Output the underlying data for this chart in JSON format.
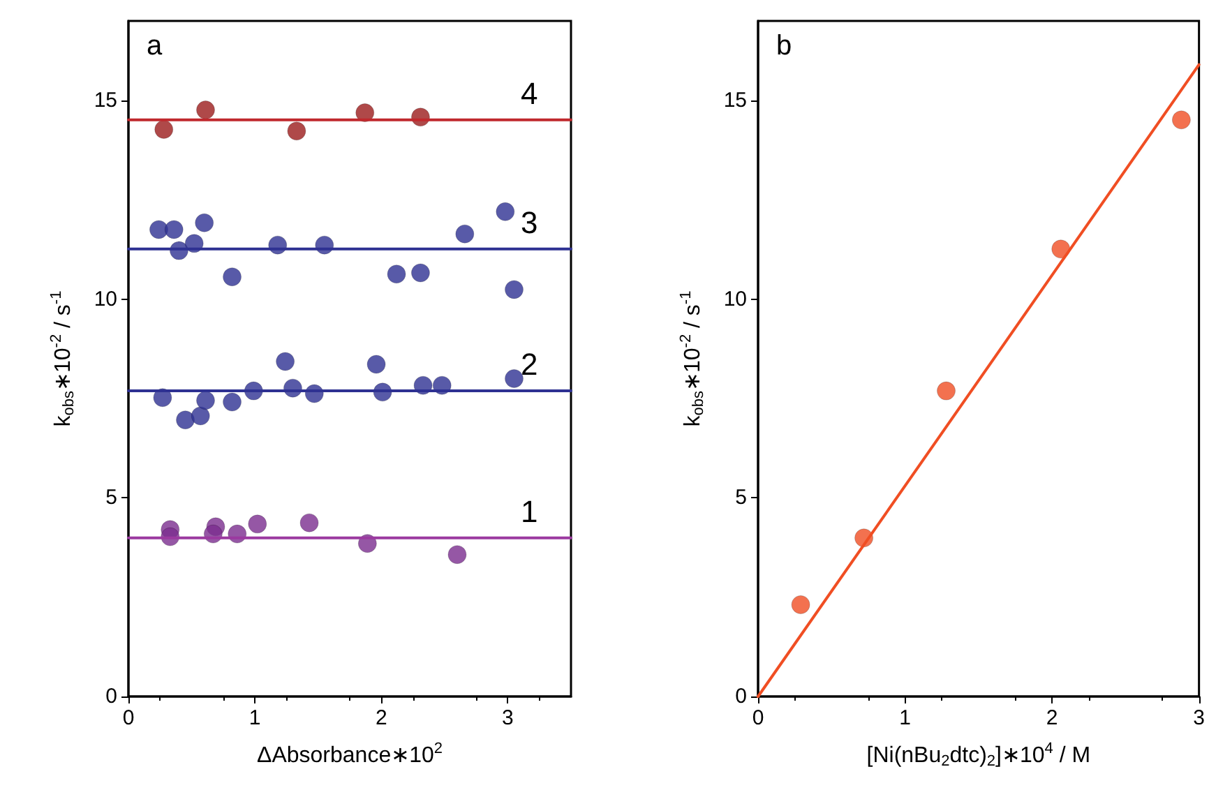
{
  "chart_data": [
    {
      "type": "scatter",
      "title": "a",
      "xlabel": "ΔAbsorbance∗10$^{2}$",
      "ylabel": "k$_{obs}$∗10$^{-2}$ / s$^{-1}$",
      "xlim": [
        0,
        3.5
      ],
      "ylim": [
        0,
        17
      ],
      "xticks": [
        0,
        1,
        2,
        3
      ],
      "yticks": [
        0,
        5,
        10,
        15
      ],
      "grid": false,
      "series": [
        {
          "color": "#9b1c1c",
          "marker": "circle",
          "x": [
            0.28,
            0.61,
            1.33,
            1.87,
            2.31
          ],
          "values": [
            14.27,
            14.76,
            14.23,
            14.69,
            14.58
          ]
        },
        {
          "color": "#2e3192",
          "marker": "circle",
          "x": [
            0.24,
            0.36,
            0.4,
            0.52,
            0.6,
            0.82,
            1.18,
            1.55,
            2.12,
            2.31,
            2.66,
            2.98,
            3.05
          ],
          "values": [
            11.75,
            11.75,
            11.22,
            11.4,
            11.92,
            10.56,
            11.36,
            11.36,
            10.63,
            10.66,
            11.64,
            12.2,
            10.24
          ]
        },
        {
          "color": "#2e3192",
          "marker": "circle",
          "x": [
            0.27,
            0.45,
            0.57,
            0.61,
            0.82,
            0.99,
            1.24,
            1.3,
            1.47,
            1.96,
            2.01,
            2.33,
            2.48,
            3.05
          ],
          "values": [
            7.52,
            6.96,
            7.06,
            7.45,
            7.41,
            7.69,
            8.43,
            7.76,
            7.62,
            8.36,
            7.66,
            7.83,
            7.83,
            8.0
          ]
        },
        {
          "color": "#7b2d8e",
          "marker": "circle",
          "x": [
            0.33,
            0.33,
            0.69,
            0.67,
            0.86,
            1.02,
            1.43,
            1.89,
            2.6
          ],
          "values": [
            4.2,
            4.02,
            4.27,
            4.09,
            4.09,
            4.34,
            4.37,
            3.85,
            3.57
          ]
        },
        {
          "type": "line",
          "name": "4",
          "color": "#c0282d",
          "marker": "none",
          "line_style": "solid",
          "x": [
            0,
            3.5
          ],
          "values": [
            14.51,
            14.51
          ]
        },
        {
          "type": "line",
          "name": "3",
          "color": "#2e3192",
          "marker": "none",
          "line_style": "solid",
          "x": [
            0,
            3.5
          ],
          "values": [
            11.26,
            11.26
          ]
        },
        {
          "type": "line",
          "name": "2",
          "color": "#2e3192",
          "marker": "none",
          "line_style": "solid",
          "x": [
            0,
            3.5
          ],
          "values": [
            7.69,
            7.69
          ]
        },
        {
          "type": "line",
          "name": "1",
          "color": "#9b3aa0",
          "marker": "none",
          "line_style": "solid",
          "x": [
            0,
            3.5
          ],
          "values": [
            3.99,
            3.99
          ]
        }
      ]
    },
    {
      "type": "scatter",
      "title": "b",
      "xlabel": "[Ni(nBu$_{2}$dtc)$_{2}$]∗10$^{4}$ / M",
      "ylabel": "k$_{obs}$∗10$^{-2}$ / s$^{-1}$",
      "xlim": [
        0,
        3
      ],
      "ylim": [
        0,
        17
      ],
      "xticks": [
        0,
        1,
        2,
        3
      ],
      "yticks": [
        0,
        5,
        10,
        15
      ],
      "grid": false,
      "series": [
        {
          "color": "#f04e23",
          "marker": "circle",
          "x": [
            0.29,
            0.72,
            1.28,
            2.06,
            2.88
          ],
          "values": [
            2.31,
            3.99,
            7.69,
            11.26,
            14.51
          ]
        },
        {
          "type": "line",
          "color": "#f04e23",
          "marker": "none",
          "x": [
            0,
            3
          ],
          "values": [
            0,
            15.9
          ],
          "line_style": "solid"
        }
      ]
    }
  ]
}
